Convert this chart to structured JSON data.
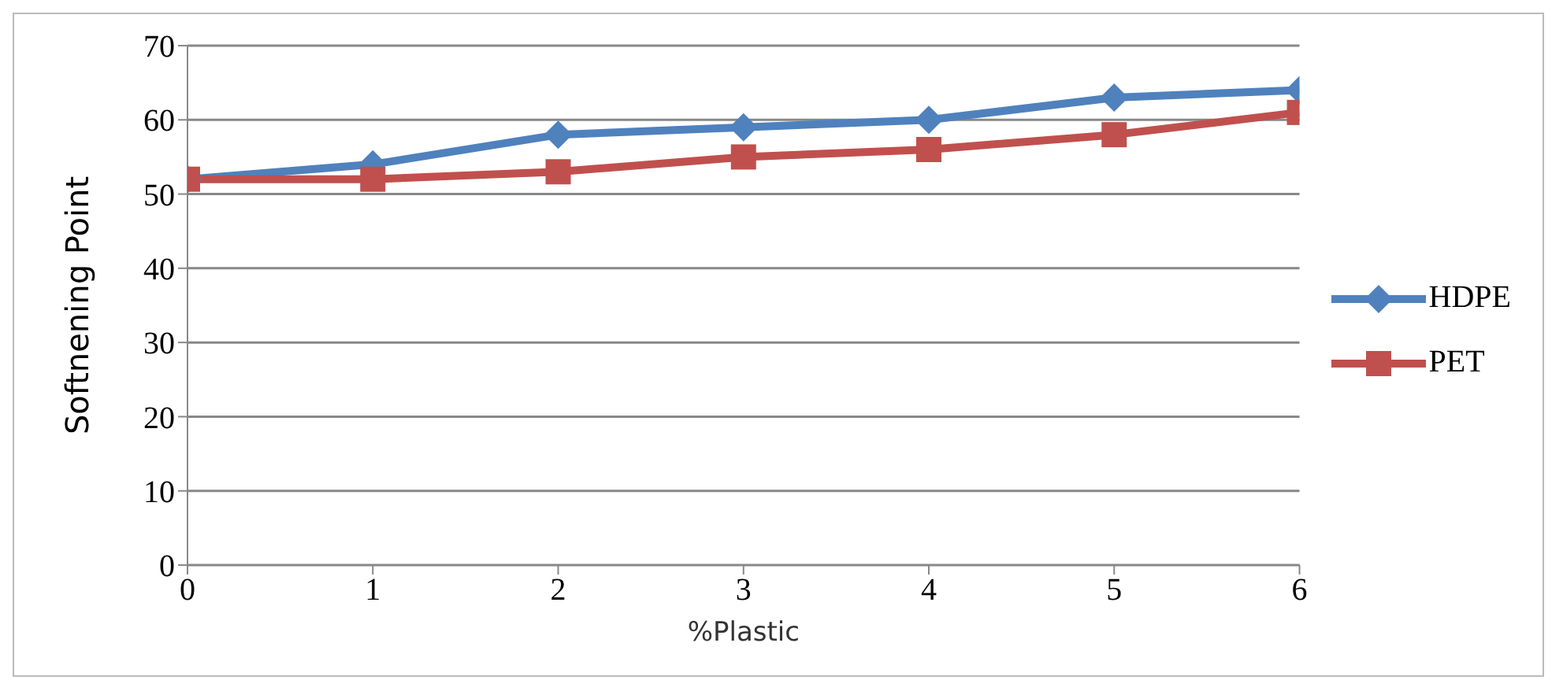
{
  "chart_data": {
    "type": "line",
    "xlabel": "%Plastic",
    "ylabel": "Softnening Point",
    "x": [
      0,
      1,
      2,
      3,
      4,
      5,
      6
    ],
    "series": [
      {
        "name": "HDPE",
        "color": "#4f81bd",
        "marker": "diamond",
        "values": [
          52,
          54,
          58,
          59,
          60,
          63,
          64
        ]
      },
      {
        "name": "PET",
        "color": "#c0504d",
        "marker": "square",
        "values": [
          52,
          52,
          53,
          55,
          56,
          58,
          61
        ]
      }
    ],
    "xlim": [
      0,
      6
    ],
    "xticks": [
      0,
      1,
      2,
      3,
      4,
      5,
      6
    ],
    "ylim": [
      0,
      70
    ],
    "yticks": [
      0,
      10,
      20,
      30,
      40,
      50,
      60,
      70
    ],
    "grid": "y",
    "legend": "right",
    "line_style": "solid"
  }
}
